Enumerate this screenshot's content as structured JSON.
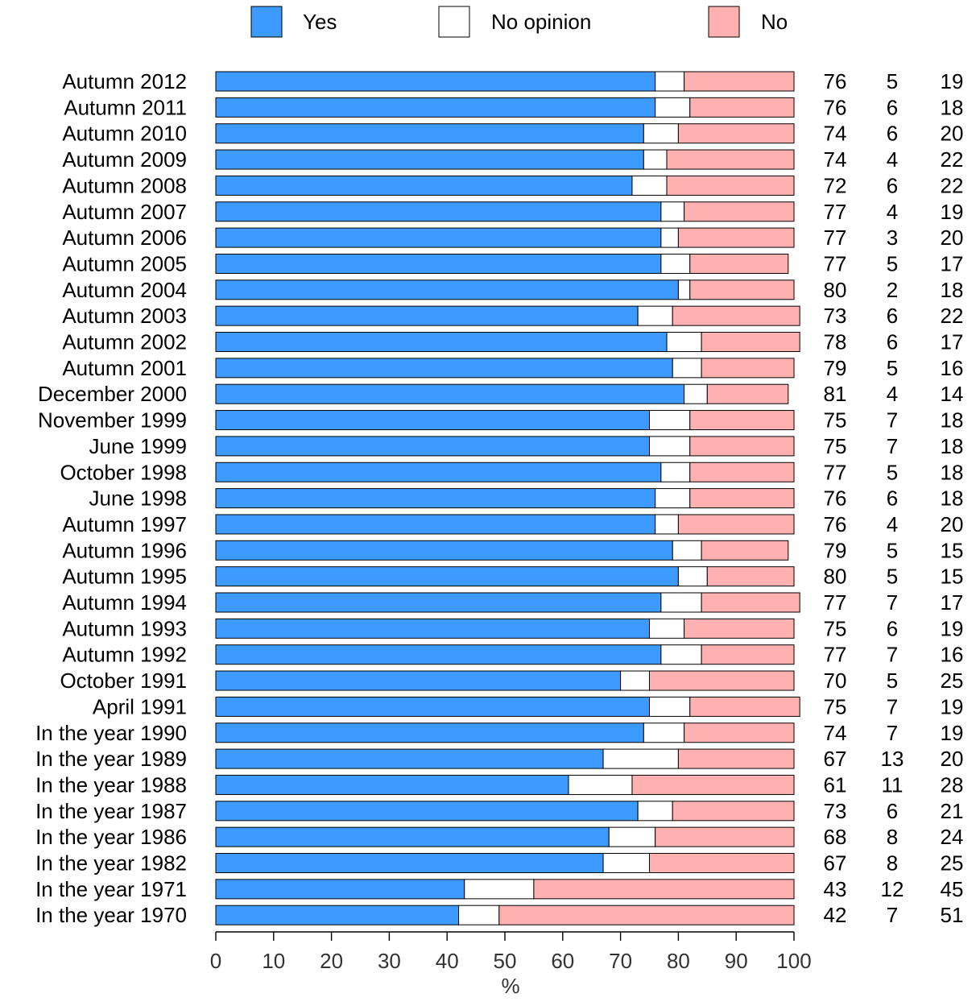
{
  "chart_data": {
    "type": "bar",
    "orientation": "horizontal",
    "stacked": true,
    "xlabel": "%",
    "xlim": [
      0,
      100
    ],
    "xticks": [
      0,
      10,
      20,
      30,
      40,
      50,
      60,
      70,
      80,
      90,
      100
    ],
    "legend_position": "top",
    "categories": [
      "Autumn 2012",
      "Autumn 2011",
      "Autumn 2010",
      "Autumn 2009",
      "Autumn 2008",
      "Autumn 2007",
      "Autumn 2006",
      "Autumn 2005",
      "Autumn 2004",
      "Autumn 2003",
      "Autumn 2002",
      "Autumn 2001",
      "December 2000",
      "November 1999",
      "June 1999",
      "October 1998",
      "June 1998",
      "Autumn 1997",
      "Autumn 1996",
      "Autumn 1995",
      "Autumn 1994",
      "Autumn 1993",
      "Autumn 1992",
      "October 1991",
      "April 1991",
      "In the year 1990",
      "In the year 1989",
      "In the year 1988",
      "In the year 1987",
      "In the year 1986",
      "In the year 1982",
      "In the year 1971",
      "In the year 1970"
    ],
    "series": [
      {
        "name": "Yes",
        "color": "#3d9bff",
        "values": [
          76,
          76,
          74,
          74,
          72,
          77,
          77,
          77,
          80,
          73,
          78,
          79,
          81,
          75,
          75,
          77,
          76,
          76,
          79,
          80,
          77,
          75,
          77,
          70,
          75,
          74,
          67,
          61,
          73,
          68,
          67,
          43,
          42
        ]
      },
      {
        "name": "No opinion",
        "color": "#ffffff",
        "values": [
          5,
          6,
          6,
          4,
          6,
          4,
          3,
          5,
          2,
          6,
          6,
          5,
          4,
          7,
          7,
          5,
          6,
          4,
          5,
          5,
          7,
          6,
          7,
          5,
          7,
          7,
          13,
          11,
          6,
          8,
          8,
          12,
          7
        ]
      },
      {
        "name": "No",
        "color": "#ffb0b0",
        "values": [
          19,
          18,
          20,
          22,
          22,
          19,
          20,
          17,
          18,
          22,
          17,
          16,
          14,
          18,
          18,
          18,
          18,
          20,
          15,
          15,
          17,
          19,
          16,
          25,
          19,
          19,
          20,
          28,
          21,
          24,
          25,
          45,
          51
        ]
      }
    ]
  }
}
